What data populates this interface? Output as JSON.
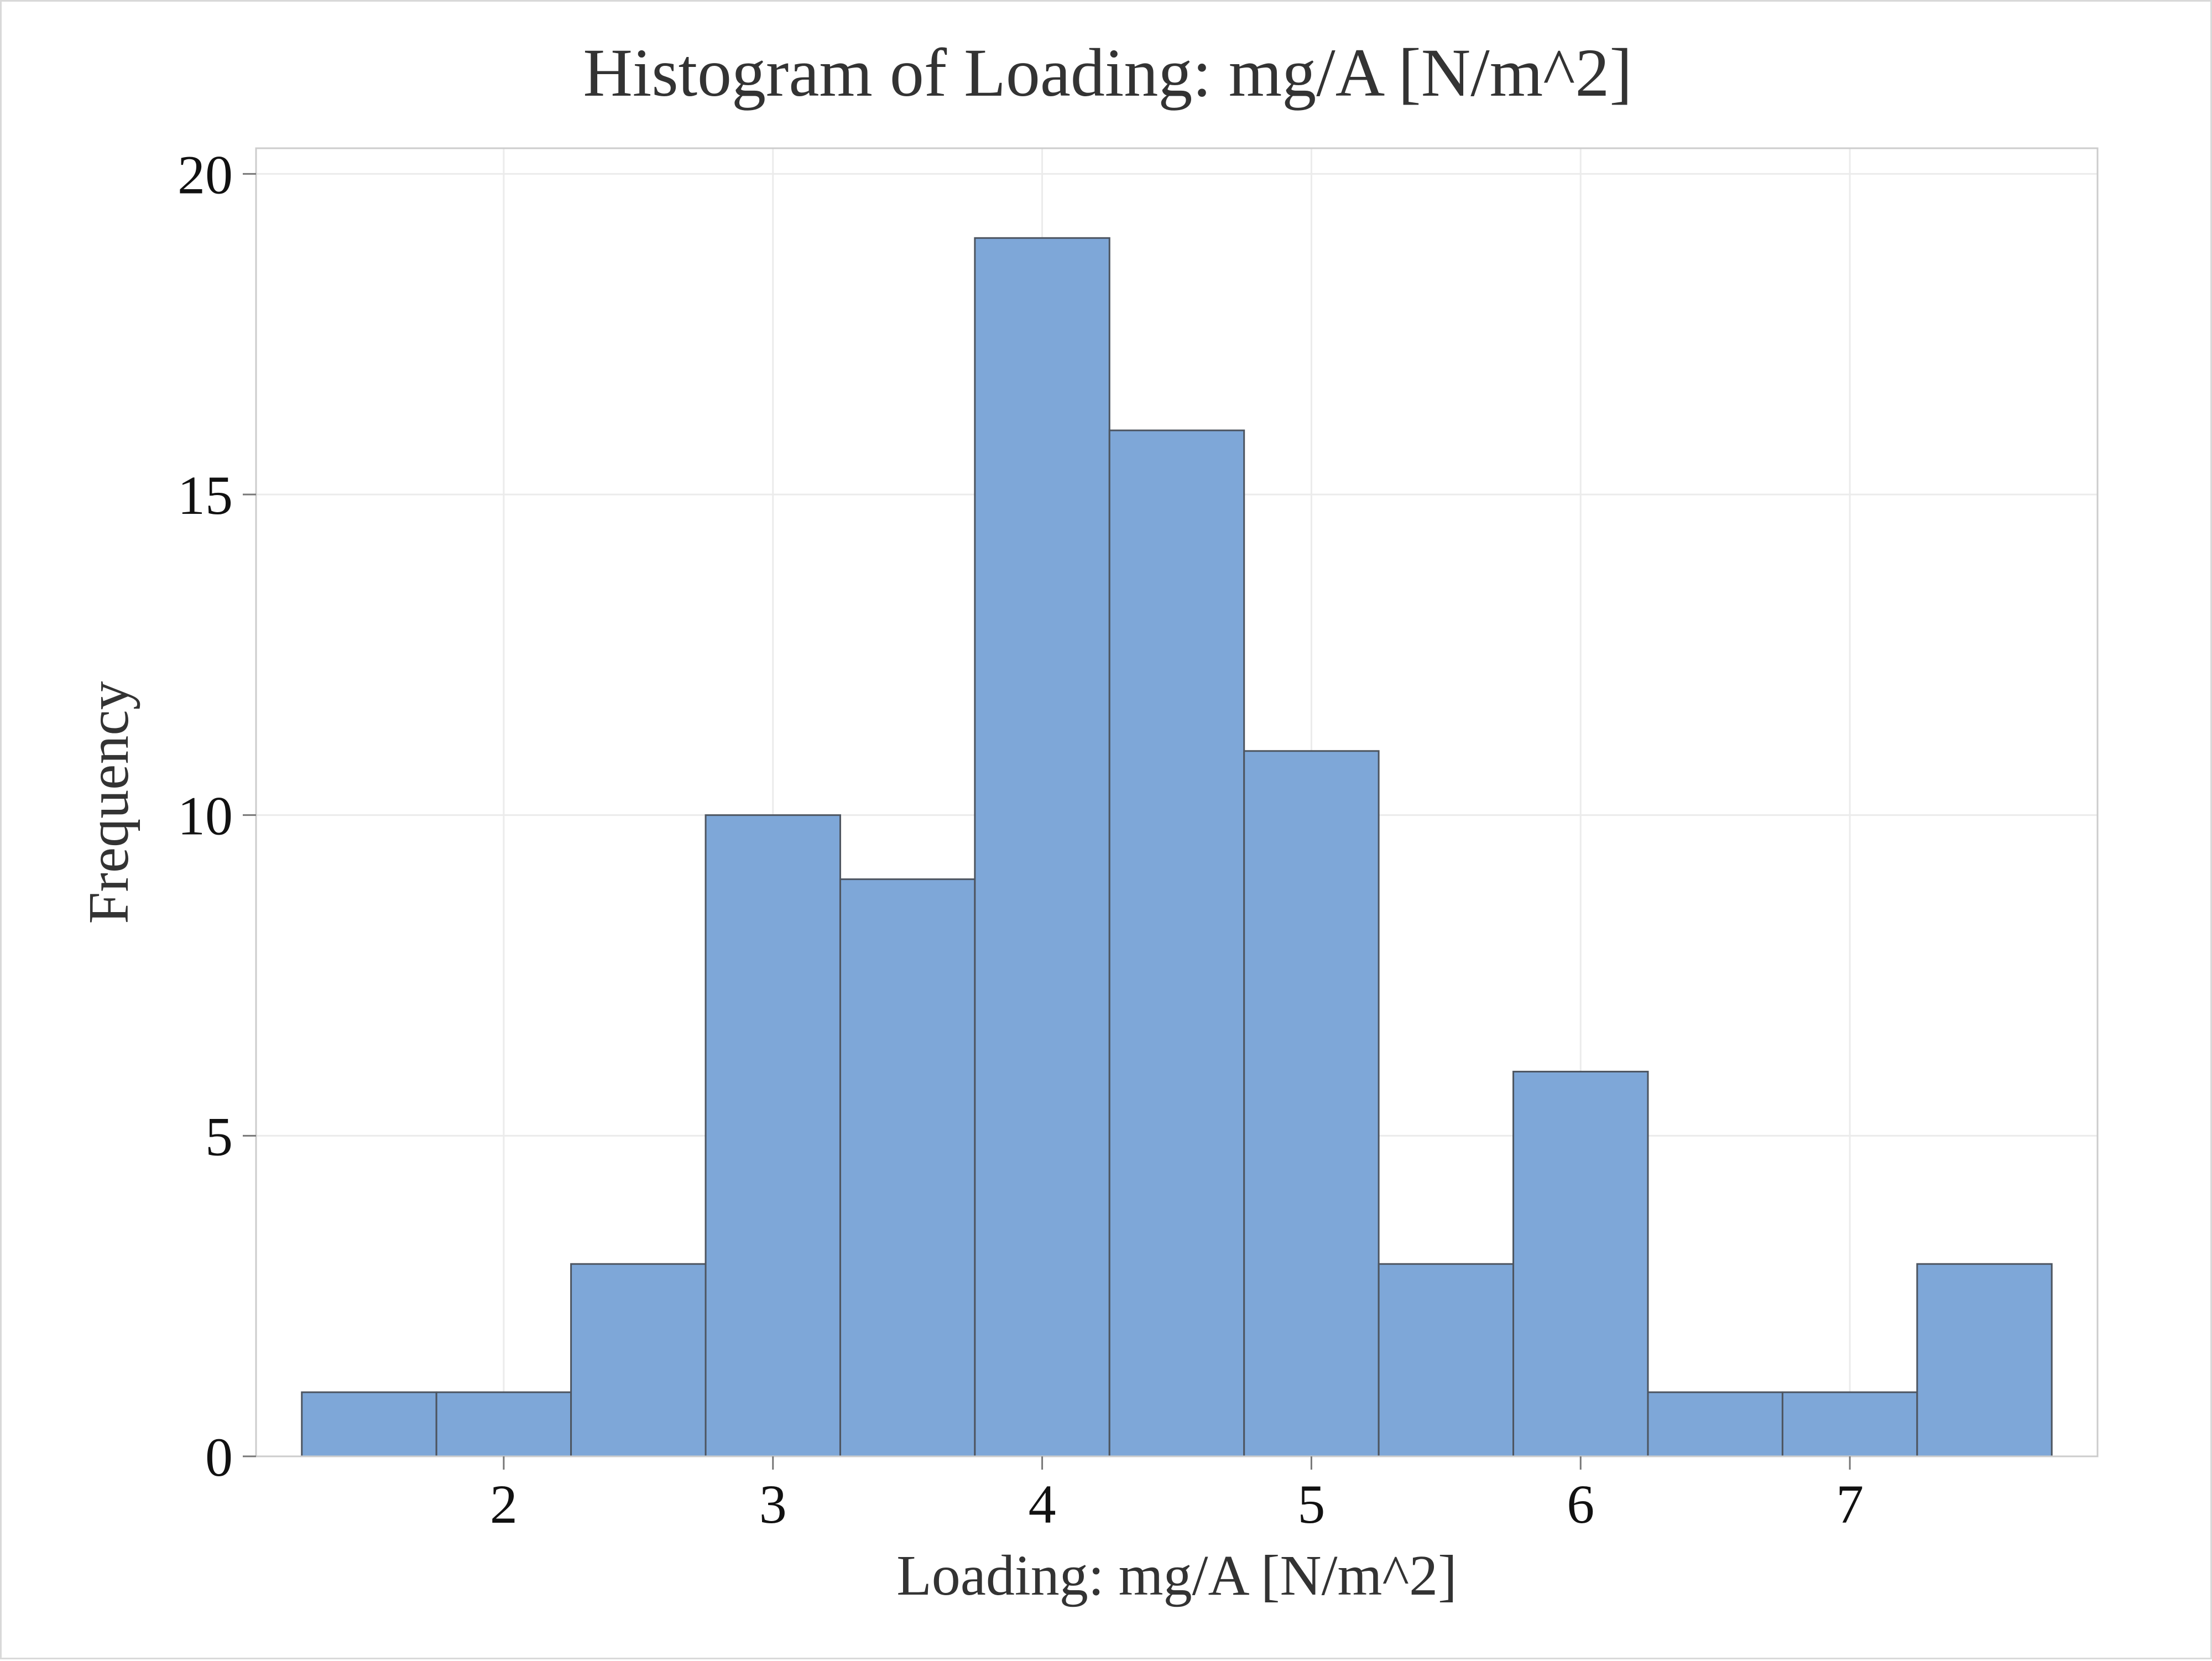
{
  "chart_data": {
    "type": "bar",
    "title": "Histogram of Loading: mg/A [N/m^2]",
    "xlabel": "Loading: mg/A [N/m^2]",
    "ylabel": "Frequency",
    "bins": [
      {
        "start": 1.25,
        "end": 1.75,
        "count": 1
      },
      {
        "start": 1.75,
        "end": 2.25,
        "count": 1
      },
      {
        "start": 2.25,
        "end": 2.75,
        "count": 3
      },
      {
        "start": 2.75,
        "end": 3.25,
        "count": 10
      },
      {
        "start": 3.25,
        "end": 3.75,
        "count": 9
      },
      {
        "start": 3.75,
        "end": 4.25,
        "count": 19
      },
      {
        "start": 4.25,
        "end": 4.75,
        "count": 16
      },
      {
        "start": 4.75,
        "end": 5.25,
        "count": 11
      },
      {
        "start": 5.25,
        "end": 5.75,
        "count": 3
      },
      {
        "start": 5.75,
        "end": 6.25,
        "count": 6
      },
      {
        "start": 6.25,
        "end": 6.75,
        "count": 1
      },
      {
        "start": 6.75,
        "end": 7.25,
        "count": 1
      },
      {
        "start": 7.25,
        "end": 7.75,
        "count": 3
      }
    ],
    "xlim": [
      1.08,
      7.92
    ],
    "ylim": [
      0,
      20.4
    ],
    "xticks": [
      "2",
      "3",
      "4",
      "5",
      "6",
      "7"
    ],
    "xtick_values": [
      2,
      3,
      4,
      5,
      6,
      7
    ],
    "yticks": [
      "0",
      "5",
      "10",
      "15",
      "20"
    ],
    "ytick_values": [
      0,
      5,
      10,
      15,
      20
    ],
    "grid": true,
    "bar_color": "#7ea7d8",
    "bar_edge_color": "#4d5560",
    "grid_color": "#ebebeb",
    "frame_color": "#cccccc"
  }
}
